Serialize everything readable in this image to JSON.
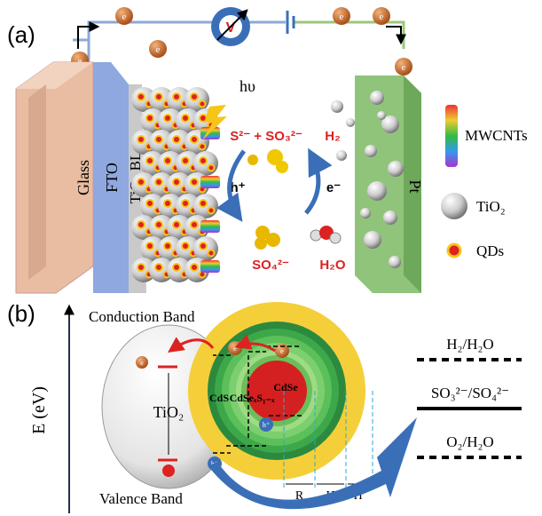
{
  "panel_a": {
    "label": "(a)",
    "voltmeter": "V",
    "electron": "e",
    "light": "hυ",
    "layers": [
      "Glass",
      "FTO",
      "TiO₂ BL",
      "Pt"
    ],
    "legend": [
      "MWCNTs",
      "TiO₂",
      "QDs"
    ],
    "reactions": {
      "reactant": "S²⁻ + SO₃²⁻",
      "hole": "h⁺",
      "product": "SO₄²⁻",
      "gas": "H₂",
      "electron": "e⁻",
      "water": "H₂O"
    }
  },
  "panel_b": {
    "label": "(b)",
    "axis": "E (eV)",
    "conduction": "Conduction Band",
    "valence": "Valence Band",
    "tio2": "TiO₂",
    "electron": "e",
    "hole": "h⁺",
    "shells": [
      "CdS",
      "CdSeₓS₁₋ₓ",
      "CdSe"
    ],
    "dimensions": [
      "R",
      "H",
      "H'"
    ],
    "levels": [
      "H₂/H₂O",
      "SO₃²⁻/SO₄²⁻",
      "O₂/H₂O"
    ]
  }
}
